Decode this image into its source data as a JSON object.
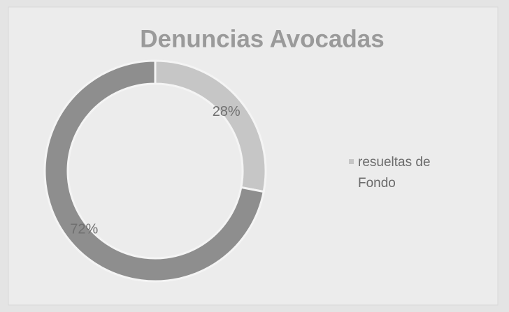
{
  "chart_data": {
    "type": "donut",
    "title": "Denuncias Avocadas",
    "categories": [
      "resueltas de Fondo",
      null
    ],
    "values": [
      28,
      72
    ],
    "value_labels": [
      "28%",
      "72%"
    ],
    "colors": [
      "#c6c6c6",
      "#8e8e8e"
    ],
    "legend": "right"
  }
}
